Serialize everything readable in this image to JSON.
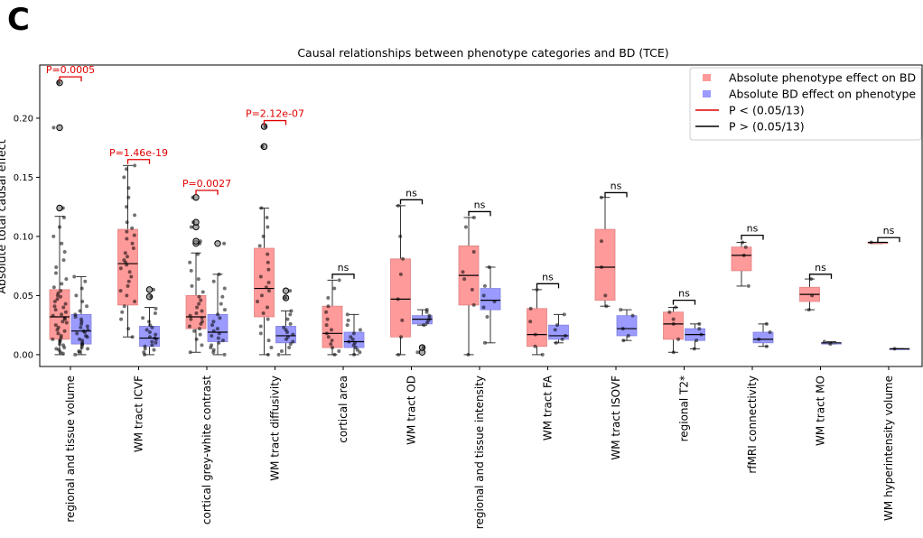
{
  "panel_label": "C",
  "chart_data": {
    "type": "box",
    "title": "Causal relationships between phenotype categories and BD (TCE)",
    "ylabel": "Absolute total causal effect",
    "xlabel": "",
    "ylim": [
      -0.01,
      0.245
    ],
    "yticks": [
      0.0,
      0.05,
      0.1,
      0.15,
      0.2
    ],
    "ytick_labels": [
      "0.00",
      "0.05",
      "0.10",
      "0.15",
      "0.20"
    ],
    "legend_position": "top-right",
    "legend": [
      {
        "label": "Absolute phenotype effect on BD",
        "kind": "patch",
        "color": "#ff9a9a"
      },
      {
        "label": "Absolute BD effect on phenotype",
        "kind": "patch",
        "color": "#9a9aff"
      },
      {
        "label": "P < (0.05/13)",
        "kind": "line",
        "color": "#e00000"
      },
      {
        "label": "P > (0.05/13)",
        "kind": "line",
        "color": "#000000"
      }
    ],
    "colors": {
      "phenotype_on_bd": "#ff9a9a",
      "bd_on_phenotype": "#9a9aff",
      "significant": "#e00000",
      "not_significant": "#000000"
    },
    "categories": [
      {
        "name": "regional and tissue volume",
        "annotation": "P=0.0005",
        "significant": true,
        "bracket_y": 0.235,
        "phenotype_on_bd": {
          "whislo": 0.0,
          "q1": 0.013,
          "median": 0.032,
          "q3": 0.055,
          "whishi": 0.117,
          "fliers": [
            0.124,
            0.192,
            0.23
          ],
          "points": [
            0.001,
            0.002,
            0.004,
            0.005,
            0.006,
            0.008,
            0.009,
            0.011,
            0.012,
            0.013,
            0.014,
            0.016,
            0.018,
            0.02,
            0.021,
            0.023,
            0.025,
            0.027,
            0.028,
            0.03,
            0.031,
            0.033,
            0.034,
            0.036,
            0.038,
            0.04,
            0.041,
            0.043,
            0.045,
            0.047,
            0.049,
            0.05,
            0.052,
            0.054,
            0.057,
            0.06,
            0.064,
            0.069,
            0.074,
            0.08,
            0.087,
            0.094,
            0.1,
            0.108,
            0.116,
            0.124,
            0.192,
            0.23
          ]
        },
        "bd_on_phenotype": {
          "whislo": 0.0,
          "q1": 0.009,
          "median": 0.02,
          "q3": 0.034,
          "whishi": 0.066,
          "fliers": [],
          "points": [
            0.0,
            0.002,
            0.003,
            0.005,
            0.006,
            0.008,
            0.009,
            0.01,
            0.012,
            0.013,
            0.015,
            0.016,
            0.018,
            0.019,
            0.02,
            0.021,
            0.023,
            0.024,
            0.026,
            0.028,
            0.03,
            0.032,
            0.034,
            0.037,
            0.041,
            0.045,
            0.05,
            0.056,
            0.062,
            0.066
          ]
        }
      },
      {
        "name": "WM tract ICVF",
        "annotation": "P=1.46e-19",
        "significant": true,
        "bracket_y": 0.165,
        "phenotype_on_bd": {
          "whislo": 0.015,
          "q1": 0.042,
          "median": 0.077,
          "q3": 0.106,
          "whishi": 0.16,
          "fliers": [],
          "points": [
            0.015,
            0.022,
            0.03,
            0.036,
            0.041,
            0.045,
            0.05,
            0.054,
            0.058,
            0.062,
            0.066,
            0.07,
            0.073,
            0.076,
            0.078,
            0.08,
            0.083,
            0.086,
            0.09,
            0.094,
            0.098,
            0.101,
            0.104,
            0.107,
            0.112,
            0.118,
            0.125,
            0.133,
            0.141,
            0.15,
            0.157,
            0.16
          ]
        },
        "bd_on_phenotype": {
          "whislo": 0.0,
          "q1": 0.007,
          "median": 0.014,
          "q3": 0.024,
          "whishi": 0.04,
          "fliers": [
            0.049,
            0.055
          ],
          "points": [
            0.0,
            0.002,
            0.004,
            0.005,
            0.007,
            0.008,
            0.01,
            0.011,
            0.013,
            0.014,
            0.015,
            0.017,
            0.019,
            0.021,
            0.023,
            0.025,
            0.028,
            0.031,
            0.035,
            0.039,
            0.049,
            0.055
          ]
        }
      },
      {
        "name": "cortical grey-white contrast",
        "annotation": "P=0.0027",
        "significant": true,
        "bracket_y": 0.139,
        "phenotype_on_bd": {
          "whislo": 0.002,
          "q1": 0.022,
          "median": 0.032,
          "q3": 0.05,
          "whishi": 0.086,
          "fliers": [
            0.094,
            0.096,
            0.108,
            0.112,
            0.133
          ],
          "points": [
            0.002,
            0.008,
            0.013,
            0.017,
            0.02,
            0.022,
            0.024,
            0.026,
            0.028,
            0.03,
            0.031,
            0.033,
            0.035,
            0.037,
            0.04,
            0.043,
            0.046,
            0.049,
            0.053,
            0.058,
            0.064,
            0.071,
            0.078,
            0.085,
            0.094,
            0.096,
            0.108,
            0.112,
            0.133
          ]
        },
        "bd_on_phenotype": {
          "whislo": 0.0,
          "q1": 0.011,
          "median": 0.019,
          "q3": 0.034,
          "whishi": 0.068,
          "fliers": [
            0.094
          ],
          "points": [
            0.0,
            0.002,
            0.004,
            0.006,
            0.008,
            0.01,
            0.012,
            0.014,
            0.016,
            0.018,
            0.02,
            0.022,
            0.025,
            0.028,
            0.031,
            0.034,
            0.038,
            0.043,
            0.049,
            0.056,
            0.062,
            0.068,
            0.094
          ]
        }
      },
      {
        "name": "WM tract diffusivity",
        "annotation": "P=2.12e-07",
        "significant": true,
        "bracket_y": 0.198,
        "phenotype_on_bd": {
          "whislo": 0.0,
          "q1": 0.032,
          "median": 0.056,
          "q3": 0.09,
          "whishi": 0.124,
          "fliers": [
            0.176,
            0.193
          ],
          "points": [
            0.0,
            0.006,
            0.012,
            0.018,
            0.024,
            0.03,
            0.035,
            0.04,
            0.045,
            0.05,
            0.054,
            0.057,
            0.061,
            0.066,
            0.072,
            0.078,
            0.085,
            0.092,
            0.1,
            0.108,
            0.116,
            0.124,
            0.176,
            0.193
          ]
        },
        "bd_on_phenotype": {
          "whislo": 0.0,
          "q1": 0.01,
          "median": 0.016,
          "q3": 0.024,
          "whishi": 0.037,
          "fliers": [
            0.048,
            0.054
          ],
          "points": [
            0.0,
            0.003,
            0.006,
            0.009,
            0.011,
            0.013,
            0.015,
            0.017,
            0.019,
            0.021,
            0.023,
            0.026,
            0.03,
            0.034,
            0.037,
            0.048,
            0.054
          ]
        }
      },
      {
        "name": "cortical area",
        "annotation": "ns",
        "significant": false,
        "bracket_y": 0.068,
        "phenotype_on_bd": {
          "whislo": 0.0,
          "q1": 0.006,
          "median": 0.018,
          "q3": 0.041,
          "whishi": 0.063,
          "fliers": [],
          "points": [
            0.0,
            0.003,
            0.006,
            0.009,
            0.012,
            0.015,
            0.018,
            0.021,
            0.025,
            0.03,
            0.036,
            0.041,
            0.048,
            0.056,
            0.063
          ]
        },
        "bd_on_phenotype": {
          "whislo": 0.0,
          "q1": 0.006,
          "median": 0.011,
          "q3": 0.019,
          "whishi": 0.034,
          "fliers": [],
          "points": [
            0.0,
            0.002,
            0.004,
            0.006,
            0.008,
            0.01,
            0.011,
            0.013,
            0.015,
            0.018,
            0.021,
            0.025,
            0.029,
            0.034
          ]
        }
      },
      {
        "name": "WM tract OD",
        "annotation": "ns",
        "significant": false,
        "bracket_y": 0.131,
        "phenotype_on_bd": {
          "whislo": 0.0,
          "q1": 0.015,
          "median": 0.047,
          "q3": 0.081,
          "whishi": 0.126,
          "fliers": [],
          "points": [
            0.0,
            0.015,
            0.029,
            0.047,
            0.068,
            0.081,
            0.1,
            0.126
          ]
        },
        "bd_on_phenotype": {
          "whislo": 0.025,
          "q1": 0.026,
          "median": 0.03,
          "q3": 0.033,
          "whishi": 0.038,
          "fliers": [
            0.002,
            0.006
          ],
          "points": [
            0.025,
            0.027,
            0.029,
            0.031,
            0.033,
            0.036,
            0.038,
            0.002,
            0.006
          ]
        }
      },
      {
        "name": "regional and tissue intensity",
        "annotation": "ns",
        "significant": false,
        "bracket_y": 0.121,
        "phenotype_on_bd": {
          "whislo": 0.0,
          "q1": 0.042,
          "median": 0.067,
          "q3": 0.092,
          "whishi": 0.116,
          "fliers": [],
          "points": [
            0.0,
            0.042,
            0.055,
            0.064,
            0.07,
            0.087,
            0.108,
            0.116
          ]
        },
        "bd_on_phenotype": {
          "whislo": 0.01,
          "q1": 0.038,
          "median": 0.046,
          "q3": 0.056,
          "whishi": 0.074,
          "fliers": [],
          "points": [
            0.01,
            0.032,
            0.04,
            0.045,
            0.05,
            0.058,
            0.074
          ]
        }
      },
      {
        "name": "WM tract FA",
        "annotation": "ns",
        "significant": false,
        "bracket_y": 0.06,
        "phenotype_on_bd": {
          "whislo": 0.0,
          "q1": 0.007,
          "median": 0.017,
          "q3": 0.039,
          "whishi": 0.055,
          "fliers": [],
          "points": [
            0.0,
            0.007,
            0.017,
            0.028,
            0.039,
            0.055
          ]
        },
        "bd_on_phenotype": {
          "whislo": 0.01,
          "q1": 0.013,
          "median": 0.016,
          "q3": 0.025,
          "whishi": 0.034,
          "fliers": [],
          "points": [
            0.01,
            0.013,
            0.016,
            0.021,
            0.025,
            0.034
          ]
        }
      },
      {
        "name": "WM tract ISOVF",
        "annotation": "ns",
        "significant": false,
        "bracket_y": 0.137,
        "phenotype_on_bd": {
          "whislo": 0.041,
          "q1": 0.046,
          "median": 0.074,
          "q3": 0.106,
          "whishi": 0.133,
          "fliers": [],
          "points": [
            0.041,
            0.05,
            0.074,
            0.096,
            0.133
          ]
        },
        "bd_on_phenotype": {
          "whislo": 0.012,
          "q1": 0.016,
          "median": 0.022,
          "q3": 0.033,
          "whishi": 0.038,
          "fliers": [],
          "points": [
            0.012,
            0.016,
            0.022,
            0.033,
            0.038
          ]
        }
      },
      {
        "name": "regional T2*",
        "annotation": "ns",
        "significant": false,
        "bracket_y": 0.046,
        "phenotype_on_bd": {
          "whislo": 0.002,
          "q1": 0.013,
          "median": 0.026,
          "q3": 0.036,
          "whishi": 0.04,
          "fliers": [],
          "points": [
            0.002,
            0.013,
            0.026,
            0.03,
            0.036,
            0.04
          ]
        },
        "bd_on_phenotype": {
          "whislo": 0.005,
          "q1": 0.012,
          "median": 0.017,
          "q3": 0.022,
          "whishi": 0.026,
          "fliers": [],
          "points": [
            0.005,
            0.012,
            0.017,
            0.022,
            0.026
          ]
        }
      },
      {
        "name": "rfMRI connectivity",
        "annotation": "ns",
        "significant": false,
        "bracket_y": 0.101,
        "phenotype_on_bd": {
          "whislo": 0.058,
          "q1": 0.071,
          "median": 0.084,
          "q3": 0.091,
          "whishi": 0.095,
          "fliers": [],
          "points": [
            0.058,
            0.084,
            0.091,
            0.095
          ]
        },
        "bd_on_phenotype": {
          "whislo": 0.007,
          "q1": 0.01,
          "median": 0.013,
          "q3": 0.019,
          "whishi": 0.026,
          "fliers": [],
          "points": [
            0.007,
            0.013,
            0.019,
            0.026
          ]
        }
      },
      {
        "name": "WM tract MO",
        "annotation": "ns",
        "significant": false,
        "bracket_y": 0.068,
        "phenotype_on_bd": {
          "whislo": 0.038,
          "q1": 0.045,
          "median": 0.051,
          "q3": 0.057,
          "whishi": 0.064,
          "fliers": [],
          "points": [
            0.038,
            0.05,
            0.064
          ]
        },
        "bd_on_phenotype": {
          "whislo": 0.009,
          "q1": 0.009,
          "median": 0.01,
          "q3": 0.01,
          "whishi": 0.011,
          "fliers": [],
          "points": [
            0.009,
            0.011
          ]
        }
      },
      {
        "name": "WM hyperintensity volume",
        "annotation": "ns",
        "significant": false,
        "bracket_y": 0.099,
        "phenotype_on_bd": {
          "whislo": 0.094,
          "q1": 0.094,
          "median": 0.095,
          "q3": 0.095,
          "whishi": 0.095,
          "fliers": [],
          "points": [
            0.095
          ]
        },
        "bd_on_phenotype": {
          "whislo": 0.005,
          "q1": 0.005,
          "median": 0.005,
          "q3": 0.005,
          "whishi": 0.005,
          "fliers": [],
          "points": [
            0.005
          ]
        }
      }
    ]
  }
}
